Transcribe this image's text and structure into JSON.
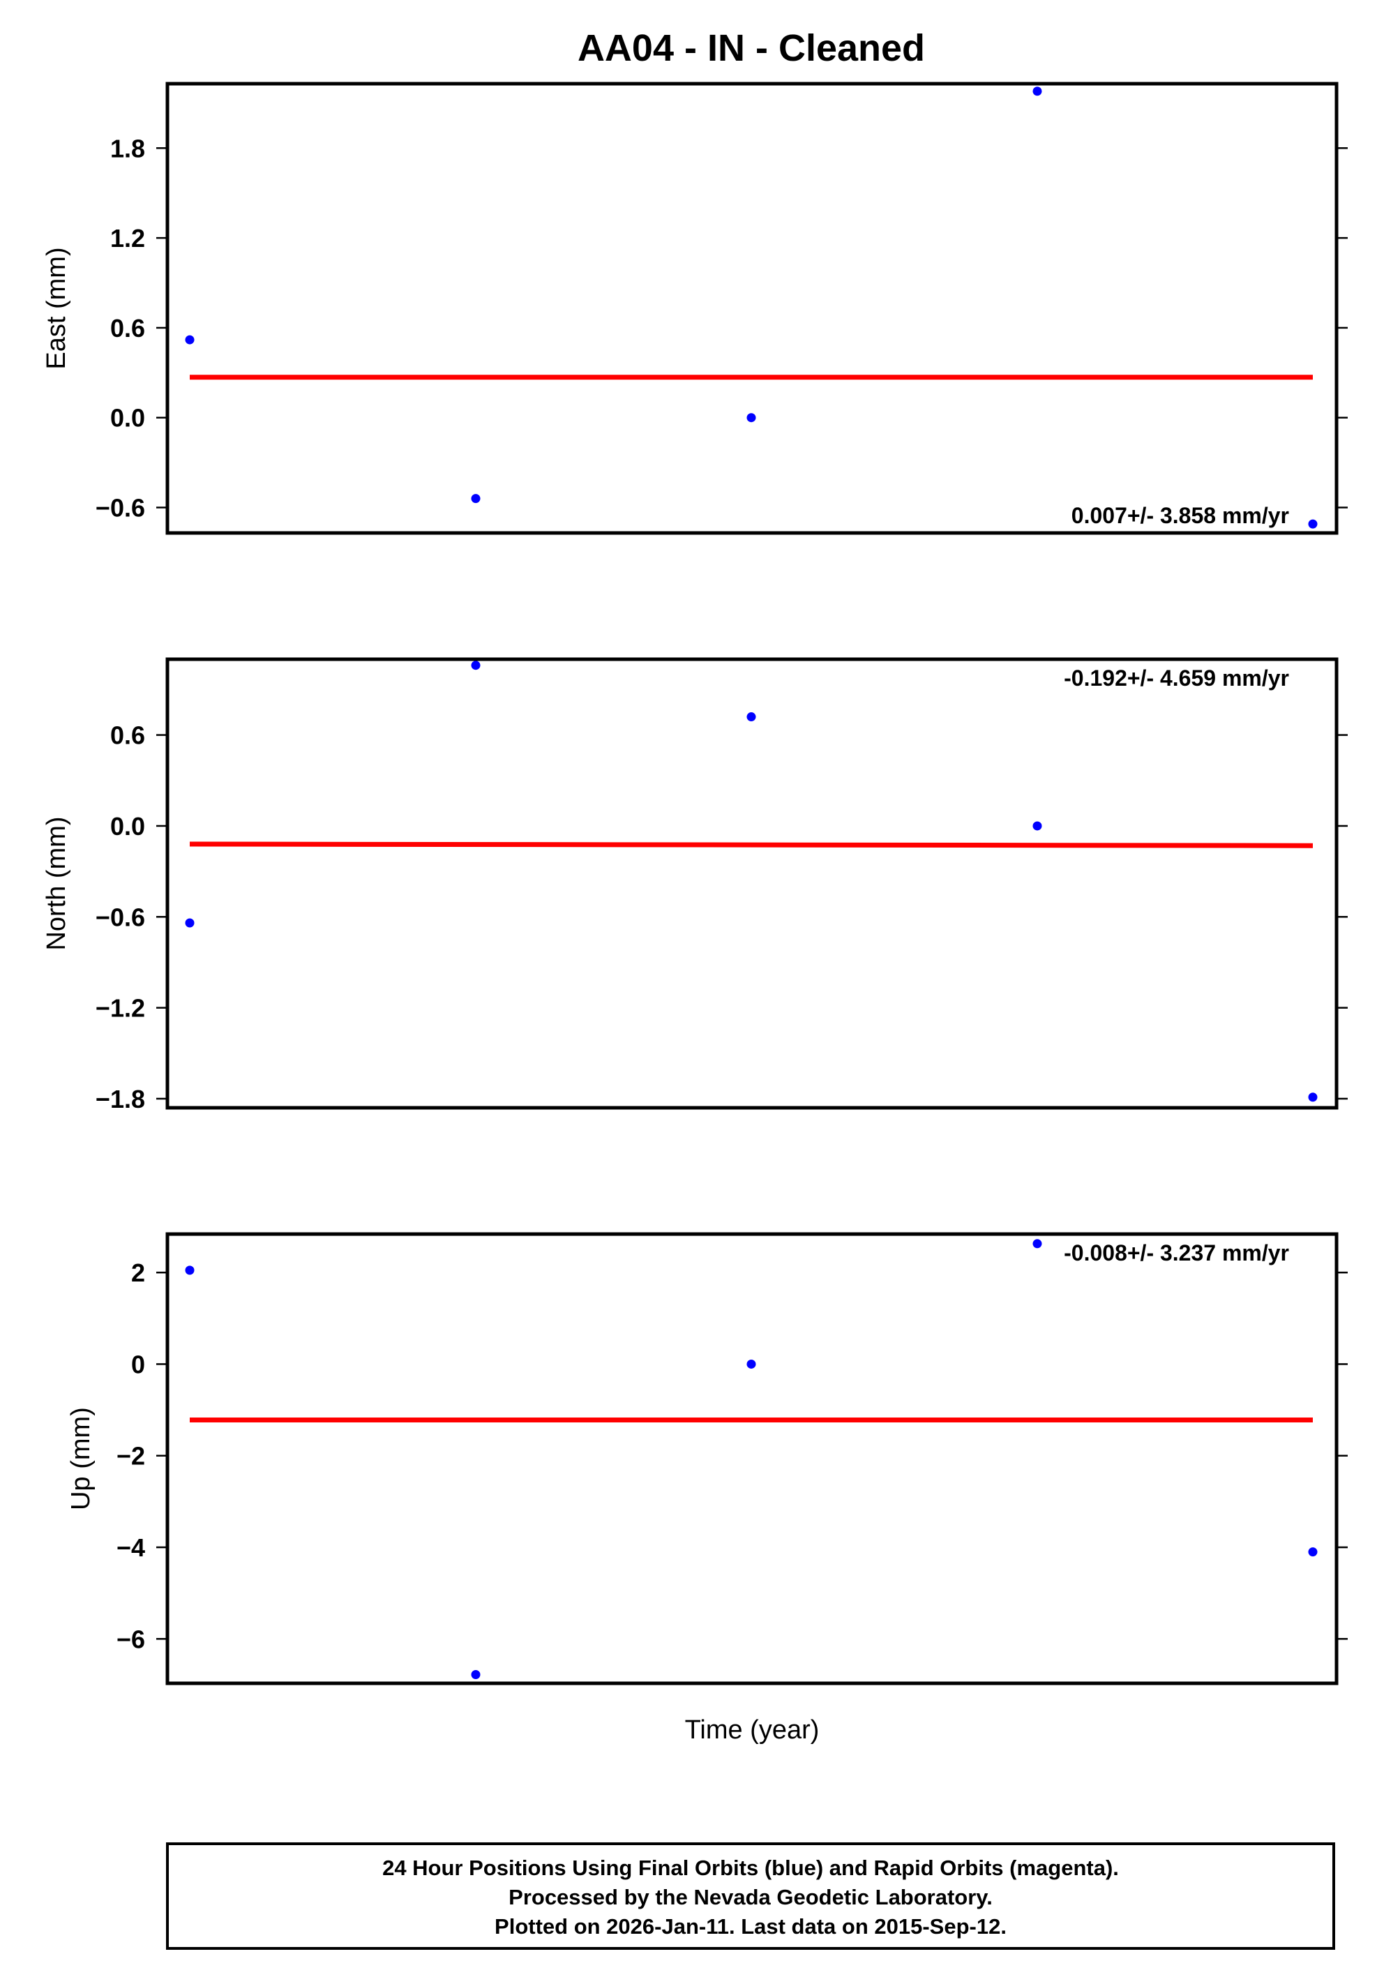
{
  "title": "AA04  - IN - Cleaned",
  "xlabel": "Time (year)",
  "footer": {
    "line1": "24 Hour Positions Using Final Orbits (blue) and Rapid Orbits (magenta).",
    "line2": "Processed by the Nevada Geodetic Laboratory.",
    "line3": "Plotted on 2026-Jan-11. Last data on 2015-Sep-12."
  },
  "colors": {
    "points": "#0000ff",
    "fit": "#ff0000",
    "frame": "#000000"
  },
  "chart_data": [
    {
      "type": "scatter",
      "ylabel": "East (mm)",
      "ylim": [
        -0.77,
        2.23
      ],
      "yticks": [
        -0.6,
        0.0,
        0.6,
        1.2,
        1.8
      ],
      "ytick_labels": [
        "−0.6",
        "0.0",
        "0.6",
        "1.2",
        "1.8"
      ],
      "x": [
        0,
        1,
        2,
        3,
        4
      ],
      "values": [
        0.52,
        -0.54,
        0.0,
        2.18,
        -0.71
      ],
      "fit": [
        0.27,
        0.27
      ],
      "rate_text": "0.007+/- 3.858 mm/yr",
      "rate_position": "bottom-right"
    },
    {
      "type": "scatter",
      "ylabel": "North (mm)",
      "ylim": [
        -1.86,
        1.1
      ],
      "yticks": [
        -1.8,
        -1.2,
        -0.6,
        0.0,
        0.6
      ],
      "ytick_labels": [
        "−1.8",
        "−1.2",
        "−0.6",
        "0.0",
        "0.6"
      ],
      "x": [
        0,
        1,
        2,
        3,
        4
      ],
      "values": [
        -0.64,
        1.06,
        0.72,
        0.0,
        -1.79
      ],
      "fit": [
        -0.12,
        -0.13
      ],
      "rate_text": "-0.192+/- 4.659 mm/yr",
      "rate_position": "top-right"
    },
    {
      "type": "scatter",
      "ylabel": "Up (mm)",
      "ylim": [
        -6.97,
        2.84
      ],
      "yticks": [
        -6,
        -4,
        -2,
        0,
        2
      ],
      "ytick_labels": [
        "−6",
        "−4",
        "−2",
        "0",
        "2"
      ],
      "x": [
        0,
        1,
        2,
        3,
        4
      ],
      "values": [
        2.05,
        -6.78,
        0.0,
        2.63,
        -4.1
      ],
      "fit": [
        -1.22,
        -1.22
      ],
      "rate_text": "-0.008+/- 3.237 mm/yr",
      "rate_position": "top-right"
    }
  ]
}
